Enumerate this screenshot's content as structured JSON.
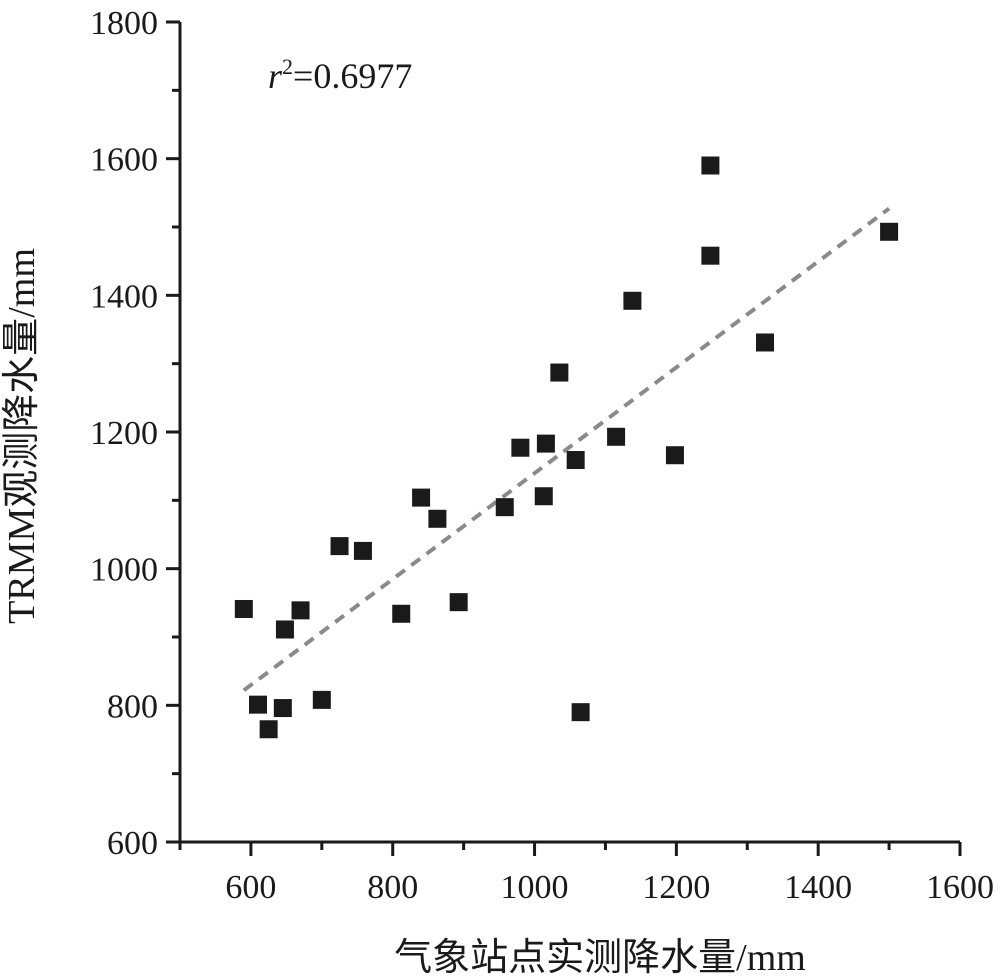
{
  "chart_data": {
    "type": "scatter",
    "title": "",
    "xlabel": "气象站点实测降水量/mm",
    "ylabel": "TRMM观测降水量/mm",
    "xlim": [
      500,
      1600
    ],
    "ylim": [
      600,
      1800
    ],
    "xticks": [
      600,
      800,
      1000,
      1200,
      1400,
      1600
    ],
    "yticks": [
      600,
      800,
      1000,
      1200,
      1400,
      1600,
      1800
    ],
    "grid": false,
    "annotation": {
      "r_label": "r",
      "r_exp": "2",
      "r_value": "=0.6977"
    },
    "colors": {
      "points": "#1a1a1a",
      "trendline": "#8a8a8a",
      "axis": "#1a1a1a"
    },
    "series": [
      {
        "points": [
          [
            590,
            941
          ],
          [
            610,
            801
          ],
          [
            625,
            765
          ],
          [
            645,
            796
          ],
          [
            648,
            911
          ],
          [
            670,
            939
          ],
          [
            700,
            808
          ],
          [
            725,
            1033
          ],
          [
            758,
            1026
          ],
          [
            812,
            934
          ],
          [
            840,
            1104
          ],
          [
            863,
            1073
          ],
          [
            893,
            951
          ],
          [
            958,
            1090
          ],
          [
            980,
            1177
          ],
          [
            1013,
            1106
          ],
          [
            1016,
            1183
          ],
          [
            1035,
            1287
          ],
          [
            1058,
            1159
          ],
          [
            1065,
            790
          ],
          [
            1115,
            1193
          ],
          [
            1138,
            1392
          ],
          [
            1198,
            1166
          ],
          [
            1248,
            1590
          ],
          [
            1248,
            1458
          ],
          [
            1325,
            1331
          ],
          [
            1500,
            1493
          ]
        ]
      }
    ],
    "trendline": {
      "style": "dashed",
      "x": [
        590,
        1500
      ],
      "y": [
        822,
        1527
      ]
    }
  }
}
